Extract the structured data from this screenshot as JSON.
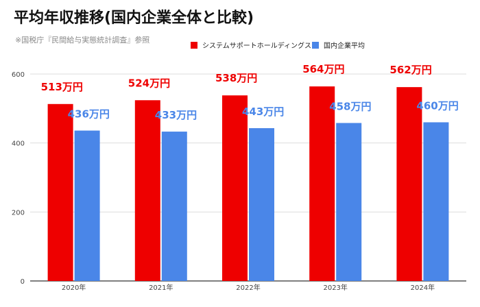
{
  "header": {
    "title": "平均年収推移(国内企業全体と比較)",
    "subtitle": "※国税庁『民間給与実態統計調査』参照"
  },
  "colors": {
    "series1": "#ee0000",
    "series2": "#4a86e8",
    "grid": "#dddddd",
    "axis": "#333333"
  },
  "chart_data": {
    "type": "bar",
    "title": "平均年収推移(国内企業全体と比較)",
    "categories": [
      "2020年",
      "2021年",
      "2022年",
      "2023年",
      "2024年"
    ],
    "series": [
      {
        "name": "システムサポートホールディングス",
        "values": [
          513,
          524,
          538,
          564,
          562
        ],
        "data_labels": [
          "513万円",
          "524万円",
          "538万円",
          "564万円",
          "562万円"
        ]
      },
      {
        "name": "国内企業平均",
        "values": [
          436,
          433,
          443,
          458,
          460
        ],
        "data_labels": [
          "436万円",
          "433万円",
          "443万円",
          "458万円",
          "460万円"
        ]
      }
    ],
    "ylim": [
      0,
      600
    ],
    "yticks": [
      "0",
      "200",
      "400",
      "600"
    ],
    "xlabel": "",
    "ylabel": "",
    "grid": true,
    "legend_position": "top"
  }
}
